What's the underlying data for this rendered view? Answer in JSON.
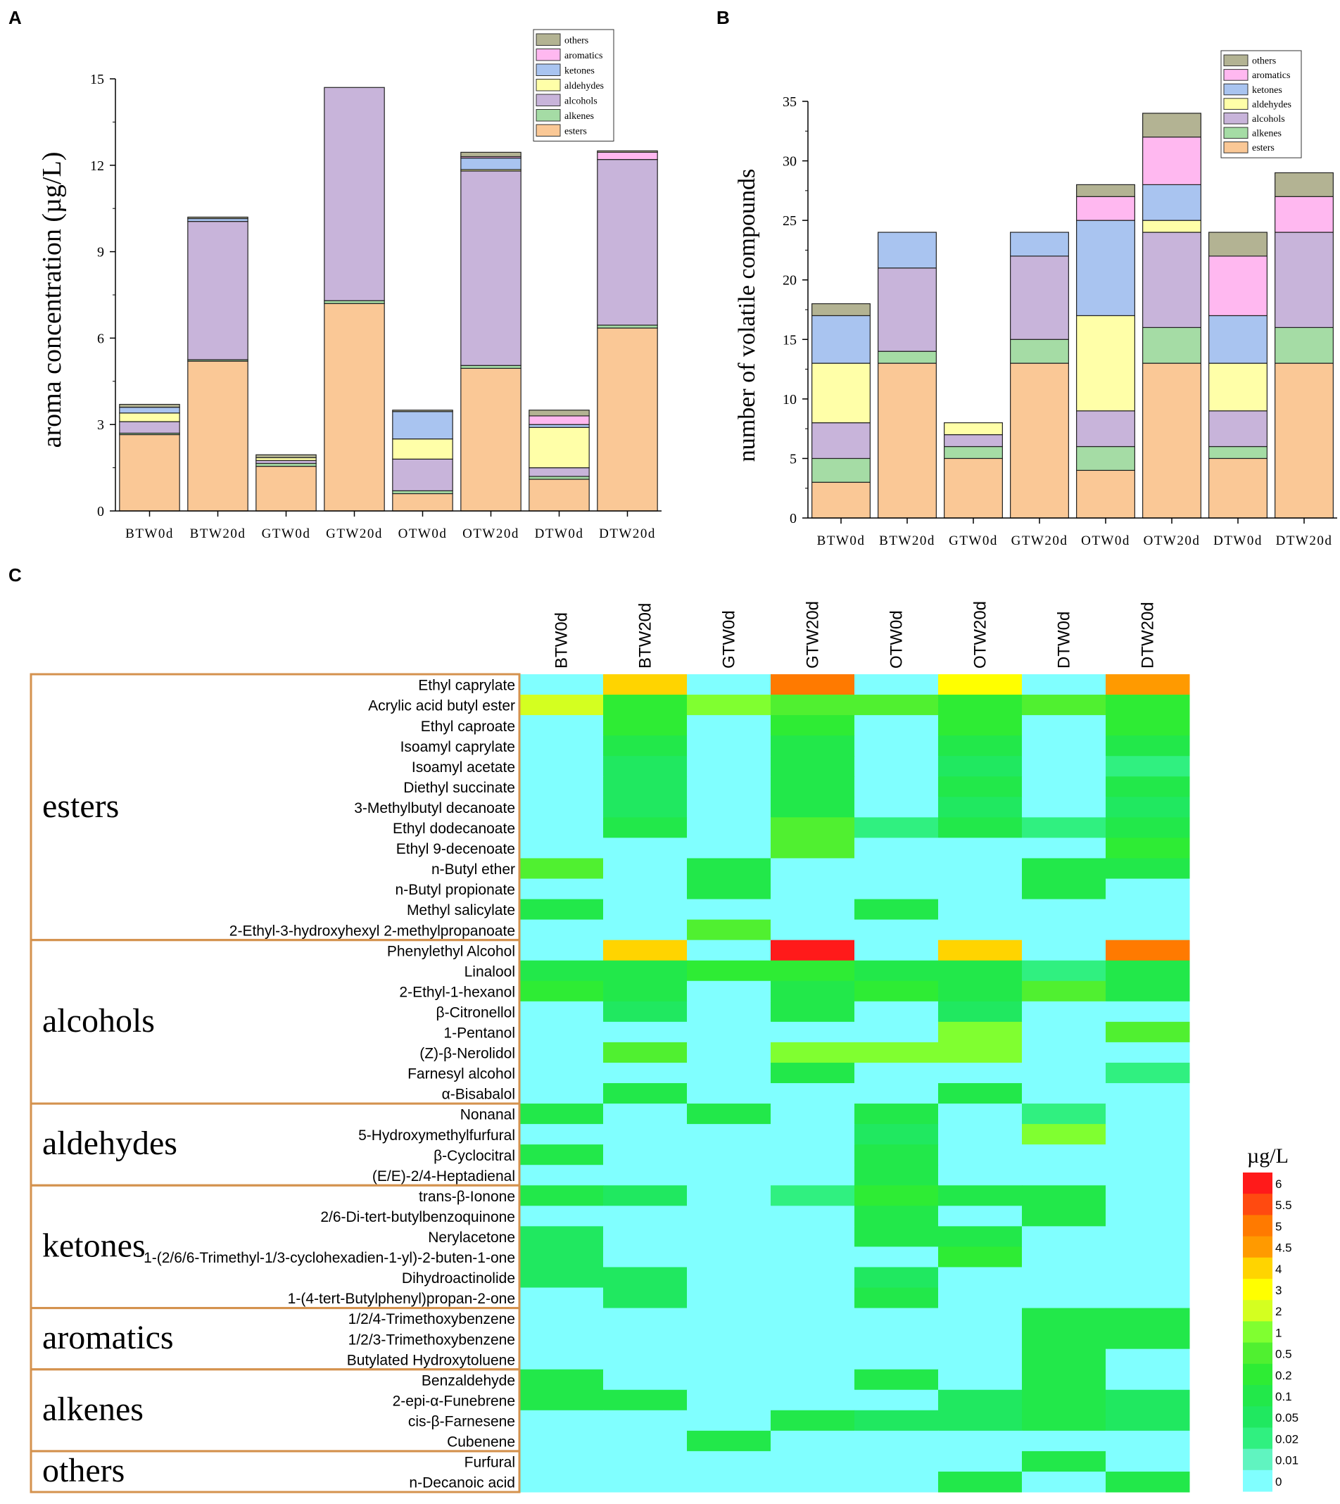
{
  "panel_labels": [
    "A",
    "B",
    "C"
  ],
  "colors": {
    "others": "#b3b393",
    "aromatics": "#ffb8f0",
    "ketones": "#a9c4f0",
    "aldehydes": "#ffffa8",
    "alcohols": "#c8b4da",
    "alkenes": "#a5dca5",
    "esters": "#fac896",
    "frame": "#d4924e"
  },
  "chart_data": [
    {
      "type": "bar",
      "stacked": true,
      "panel": "A",
      "title": "",
      "xlabel": "",
      "ylabel": "aroma concentration (µg/L)",
      "ylim": [
        0,
        15
      ],
      "yticks": [
        "0",
        "3",
        "6",
        "9",
        "12",
        "15"
      ],
      "categories": [
        "BTW0d",
        "BTW20d",
        "GTW0d",
        "GTW20d",
        "OTW0d",
        "OTW20d",
        "DTW0d",
        "DTW20d"
      ],
      "legend": [
        "others",
        "aromatics",
        "ketones",
        "aldehydes",
        "alcohols",
        "alkenes",
        "esters"
      ],
      "legend_position": "top-right",
      "series": [
        {
          "name": "esters",
          "values": [
            2.65,
            5.2,
            1.55,
            7.2,
            0.6,
            4.95,
            1.1,
            6.35
          ]
        },
        {
          "name": "alkenes",
          "values": [
            0.05,
            0.05,
            0.1,
            0.1,
            0.1,
            0.1,
            0.1,
            0.1
          ]
        },
        {
          "name": "alcohols",
          "values": [
            0.4,
            4.8,
            0.1,
            7.4,
            1.1,
            6.75,
            0.3,
            5.75
          ]
        },
        {
          "name": "aldehydes",
          "values": [
            0.3,
            0.0,
            0.1,
            0.0,
            0.7,
            0.05,
            1.4,
            0.0
          ]
        },
        {
          "name": "ketones",
          "values": [
            0.2,
            0.1,
            0.0,
            0.0,
            0.95,
            0.4,
            0.1,
            0.0
          ]
        },
        {
          "name": "aromatics",
          "values": [
            0.0,
            0.0,
            0.0,
            0.0,
            0.0,
            0.05,
            0.3,
            0.25
          ]
        },
        {
          "name": "others",
          "values": [
            0.1,
            0.05,
            0.1,
            0.0,
            0.05,
            0.15,
            0.2,
            0.05
          ]
        }
      ]
    },
    {
      "type": "bar",
      "stacked": true,
      "panel": "B",
      "title": "",
      "xlabel": "",
      "ylabel": "number of volatile compounds",
      "ylim": [
        0,
        35
      ],
      "yticks": [
        "0",
        "5",
        "10",
        "15",
        "20",
        "25",
        "30",
        "35"
      ],
      "categories": [
        "BTW0d",
        "BTW20d",
        "GTW0d",
        "GTW20d",
        "OTW0d",
        "OTW20d",
        "DTW0d",
        "DTW20d"
      ],
      "legend": [
        "others",
        "aromatics",
        "ketones",
        "aldehydes",
        "alcohols",
        "alkenes",
        "esters"
      ],
      "legend_position": "top-right",
      "series": [
        {
          "name": "esters",
          "values": [
            3,
            13,
            5,
            13,
            4,
            13,
            5,
            13
          ]
        },
        {
          "name": "alkenes",
          "values": [
            2,
            1,
            1,
            2,
            2,
            3,
            1,
            3
          ]
        },
        {
          "name": "alcohols",
          "values": [
            3,
            7,
            1,
            7,
            3,
            8,
            3,
            8
          ]
        },
        {
          "name": "aldehydes",
          "values": [
            5,
            0,
            1,
            0,
            8,
            1,
            4,
            0
          ]
        },
        {
          "name": "ketones",
          "values": [
            4,
            3,
            0,
            2,
            8,
            3,
            4,
            0
          ]
        },
        {
          "name": "aromatics",
          "values": [
            0,
            0,
            0,
            0,
            2,
            4,
            5,
            3
          ]
        },
        {
          "name": "others",
          "values": [
            1,
            0,
            0,
            0,
            1,
            2,
            2,
            2
          ]
        }
      ]
    },
    {
      "type": "heatmap",
      "panel": "C",
      "unit": "µg/L",
      "columns": [
        "BTW0d",
        "BTW20d",
        "GTW0d",
        "GTW20d",
        "OTW0d",
        "OTW20d",
        "DTW0d",
        "DTW20d"
      ],
      "scale_labels": [
        "6",
        "5.5",
        "5",
        "4.5",
        "4",
        "3",
        "2",
        "1",
        "0.5",
        "0.2",
        "0.1",
        "0.05",
        "0.02",
        "0.01",
        "0"
      ],
      "scale_colors": [
        "#ff1a1a",
        "#ff4a10",
        "#ff7a00",
        "#ff9a00",
        "#ffd400",
        "#ffff00",
        "#d4ff20",
        "#80ff30",
        "#50f030",
        "#2eec34",
        "#22e84a",
        "#20e860",
        "#30f080",
        "#60f4c0",
        "#80ffff"
      ],
      "groups": [
        {
          "name": "esters",
          "start": 0,
          "count": 13
        },
        {
          "name": "alcohols",
          "start": 13,
          "count": 8
        },
        {
          "name": "aldehydes",
          "start": 21,
          "count": 4
        },
        {
          "name": "ketones",
          "start": 25,
          "count": 6
        },
        {
          "name": "aromatics",
          "start": 31,
          "count": 3
        },
        {
          "name": "alkenes",
          "start": 34,
          "count": 4
        },
        {
          "name": "others",
          "start": 38,
          "count": 2
        }
      ],
      "rows": [
        {
          "name": "Ethyl caprylate",
          "values": [
            0,
            4,
            0,
            5,
            0,
            3.5,
            0,
            4.5
          ]
        },
        {
          "name": "Acrylic acid butyl ester",
          "values": [
            2,
            0.2,
            1,
            0.5,
            0.5,
            0.2,
            0.5,
            0.2
          ]
        },
        {
          "name": "Ethyl caproate",
          "values": [
            0,
            0.2,
            0,
            0.2,
            0,
            0.2,
            0,
            0.2
          ]
        },
        {
          "name": "Isoamyl caprylate",
          "values": [
            0,
            0.1,
            0,
            0.1,
            0,
            0.1,
            0,
            0.1
          ]
        },
        {
          "name": "Isoamyl acetate",
          "values": [
            0,
            0.05,
            0,
            0.1,
            0,
            0.05,
            0,
            0.02
          ]
        },
        {
          "name": "Diethyl succinate",
          "values": [
            0,
            0.05,
            0,
            0.1,
            0,
            0.1,
            0,
            0.1
          ]
        },
        {
          "name": "3-Methylbutyl decanoate",
          "values": [
            0,
            0.05,
            0,
            0.1,
            0,
            0.05,
            0,
            0.05
          ]
        },
        {
          "name": "Ethyl dodecanoate",
          "values": [
            0,
            0.1,
            0,
            0.5,
            0.02,
            0.1,
            0.02,
            0.1
          ]
        },
        {
          "name": "Ethyl 9-decenoate",
          "values": [
            0,
            0,
            0,
            0.5,
            0,
            0,
            0,
            0.2
          ]
        },
        {
          "name": "n-Butyl ether",
          "values": [
            0.5,
            0,
            0.1,
            0,
            0,
            0,
            0.1,
            0.1
          ]
        },
        {
          "name": "n-Butyl propionate",
          "values": [
            0,
            0,
            0.1,
            0,
            0,
            0,
            0.1,
            0
          ]
        },
        {
          "name": "Methyl salicylate",
          "values": [
            0.1,
            0,
            0,
            0,
            0.1,
            0,
            0,
            0
          ]
        },
        {
          "name": "2-Ethyl-3-hydroxyhexyl 2-methylpropanoate",
          "values": [
            0,
            0,
            0.5,
            0,
            0,
            0,
            0,
            0
          ]
        },
        {
          "name": "Phenylethyl Alcohol",
          "values": [
            0,
            4,
            0,
            6,
            0,
            4,
            0,
            5
          ]
        },
        {
          "name": "Linalool",
          "values": [
            0.1,
            0.1,
            0.2,
            0.2,
            0.1,
            0.1,
            0.02,
            0.1
          ]
        },
        {
          "name": "2-Ethyl-1-hexanol",
          "values": [
            0.2,
            0.1,
            0,
            0.1,
            0.2,
            0.1,
            0.5,
            0.1
          ]
        },
        {
          "name": "β-Citronellol",
          "values": [
            0,
            0.05,
            0,
            0.1,
            0,
            0.05,
            0,
            0
          ]
        },
        {
          "name": "1-Pentanol",
          "values": [
            0,
            0,
            0,
            0,
            0,
            1,
            0,
            0.5
          ]
        },
        {
          "name": "(Z)-β-Nerolidol",
          "values": [
            0,
            0.5,
            0,
            1,
            1,
            1,
            0,
            0
          ]
        },
        {
          "name": "Farnesyl alcohol",
          "values": [
            0,
            0,
            0,
            0.1,
            0,
            0,
            0,
            0.02
          ]
        },
        {
          "name": "α-Bisabalol",
          "values": [
            0,
            0.1,
            0,
            0,
            0,
            0.1,
            0,
            0
          ]
        },
        {
          "name": "Nonanal",
          "values": [
            0.1,
            0,
            0.1,
            0,
            0.1,
            0,
            0.02,
            0
          ]
        },
        {
          "name": "5-Hydroxymethylfurfural",
          "values": [
            0,
            0,
            0,
            0,
            0.05,
            0,
            1,
            0
          ]
        },
        {
          "name": "β-Cyclocitral",
          "values": [
            0.1,
            0,
            0,
            0,
            0.1,
            0,
            0,
            0
          ]
        },
        {
          "name": "(E/E)-2/4-Heptadienal",
          "values": [
            0,
            0,
            0,
            0,
            0.1,
            0,
            0,
            0
          ]
        },
        {
          "name": "trans-β-Ionone",
          "values": [
            0.1,
            0.05,
            0,
            0.02,
            0.2,
            0.1,
            0.1,
            0
          ]
        },
        {
          "name": "2/6-Di-tert-butylbenzoquinone",
          "values": [
            0,
            0,
            0,
            0,
            0.1,
            0,
            0.1,
            0
          ]
        },
        {
          "name": "Nerylacetone",
          "values": [
            0.05,
            0,
            0,
            0,
            0.1,
            0.1,
            0,
            0
          ]
        },
        {
          "name": "1-(2/6/6-Trimethyl-1/3-cyclohexadien-1-yl)-2-buten-1-one",
          "values": [
            0.05,
            0,
            0,
            0,
            0,
            0.2,
            0,
            0
          ]
        },
        {
          "name": "Dihydroactinolide",
          "values": [
            0.05,
            0.05,
            0,
            0,
            0.05,
            0,
            0,
            0
          ]
        },
        {
          "name": "1-(4-tert-Butylphenyl)propan-2-one",
          "values": [
            0,
            0.05,
            0,
            0,
            0.1,
            0,
            0,
            0
          ]
        },
        {
          "name": "1/2/4-Trimethoxybenzene",
          "values": [
            0,
            0,
            0,
            0,
            0,
            0,
            0.1,
            0.1
          ]
        },
        {
          "name": "1/2/3-Trimethoxybenzene",
          "values": [
            0,
            0,
            0,
            0,
            0,
            0,
            0.1,
            0.1
          ]
        },
        {
          "name": "Butylated Hydroxytoluene",
          "values": [
            0,
            0,
            0,
            0,
            0,
            0,
            0.1,
            0
          ]
        },
        {
          "name": "Benzaldehyde",
          "values": [
            0.1,
            0,
            0,
            0,
            0.1,
            0,
            0.1,
            0
          ]
        },
        {
          "name": "2-epi-α-Funebrene",
          "values": [
            0.1,
            0.1,
            0,
            0,
            0,
            0.05,
            0.1,
            0.05
          ]
        },
        {
          "name": "cis-β-Farnesene",
          "values": [
            0,
            0,
            0,
            0.1,
            0.05,
            0.05,
            0.1,
            0.05
          ]
        },
        {
          "name": "Cubenene",
          "values": [
            0,
            0,
            0.1,
            0,
            0,
            0,
            0,
            0
          ]
        },
        {
          "name": "Furfural",
          "values": [
            0,
            0,
            0,
            0,
            0,
            0,
            0.1,
            0
          ]
        },
        {
          "name": "n-Decanoic acid",
          "values": [
            0,
            0,
            0,
            0,
            0,
            0.1,
            0,
            0.1
          ]
        }
      ]
    }
  ]
}
